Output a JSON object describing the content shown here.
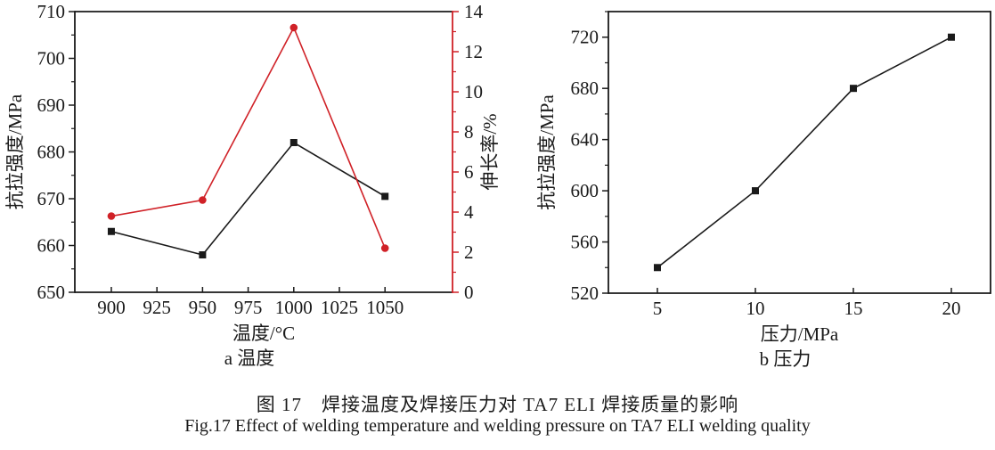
{
  "caption": {
    "line1": "图 17　焊接温度及焊接压力对 TA7 ELI 焊接质量的影响",
    "line2": "Fig.17 Effect of welding temperature and welding pressure on TA7 ELI welding quality"
  },
  "colors": {
    "black": "#1a1a1a",
    "red": "#d02127"
  },
  "chart_data": [
    {
      "id": "a",
      "type": "line",
      "panel_label": "a 温度",
      "xlabel": "温度/°C",
      "ylabel_left": "抗拉强度/MPa",
      "ylabel_right": "伸长率/%",
      "x": [
        900,
        950,
        1000,
        1050
      ],
      "xlim": [
        880,
        1087
      ],
      "xticks": [
        900,
        925,
        950,
        975,
        1000,
        1025,
        1050
      ],
      "ylim_left": [
        650,
        710
      ],
      "yticks_left": [
        650,
        660,
        670,
        680,
        690,
        700,
        710
      ],
      "yminor_left": 5,
      "ylim_right": [
        0,
        14
      ],
      "yticks_right": [
        0,
        2,
        4,
        6,
        8,
        10,
        12,
        14
      ],
      "yminor_right": 1,
      "right_axis_color": "#d02127",
      "grid": false,
      "legend": "none",
      "series": [
        {
          "name": "抗拉强度",
          "axis": "left",
          "color": "#1a1a1a",
          "marker": "square",
          "values": [
            663,
            658,
            682,
            670.5
          ]
        },
        {
          "name": "伸长率",
          "axis": "right",
          "color": "#d02127",
          "marker": "circle",
          "values": [
            3.8,
            4.6,
            13.2,
            2.2
          ]
        }
      ]
    },
    {
      "id": "b",
      "type": "line",
      "panel_label": "b 压力",
      "xlabel": "压力/MPa",
      "ylabel_left": "抗拉强度/MPa",
      "x": [
        5,
        10,
        15,
        20
      ],
      "xlim": [
        2.5,
        22
      ],
      "xticks": [
        5,
        10,
        15,
        20
      ],
      "ylim_left": [
        520,
        740
      ],
      "yticks_left": [
        520,
        560,
        600,
        640,
        680,
        720
      ],
      "yminor_left": 20,
      "grid": false,
      "legend": "none",
      "series": [
        {
          "name": "抗拉强度",
          "axis": "left",
          "color": "#1a1a1a",
          "marker": "square",
          "values": [
            540,
            600,
            680,
            720
          ]
        }
      ]
    }
  ]
}
